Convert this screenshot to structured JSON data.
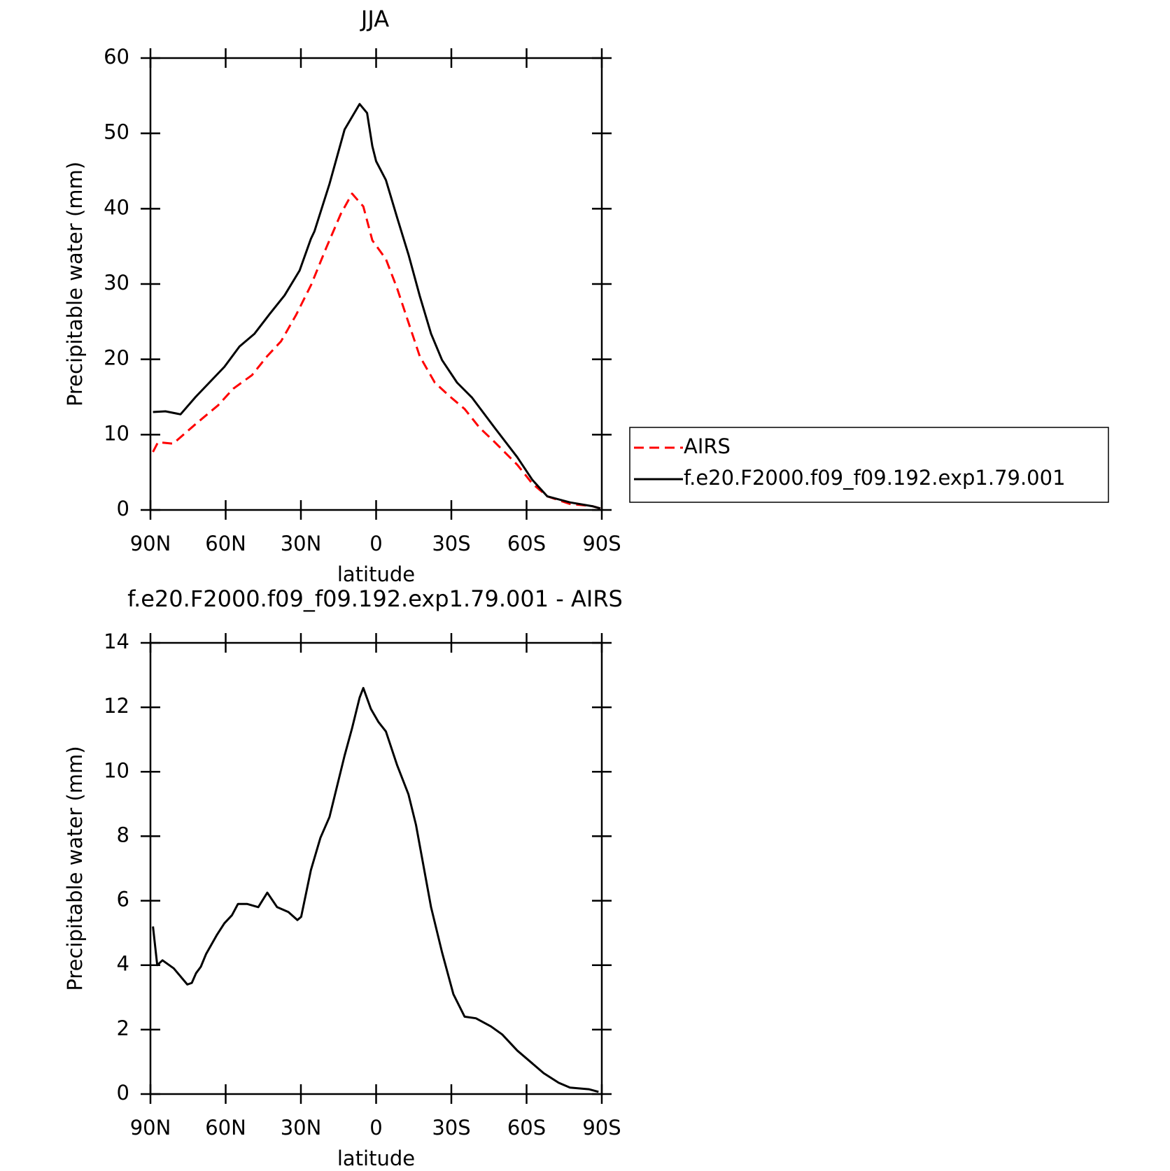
{
  "chart_data": [
    {
      "type": "line",
      "title": "JJA",
      "xlabel": "latitude",
      "ylabel": "Precipitable water (mm)",
      "xlim": [
        90,
        -90
      ],
      "ylim": [
        0,
        60
      ],
      "xticks": [
        {
          "value": 90,
          "label": "90N"
        },
        {
          "value": 60,
          "label": "60N"
        },
        {
          "value": 30,
          "label": "30N"
        },
        0,
        {
          "value": -30,
          "label": "30S"
        },
        {
          "value": -60,
          "label": "60S"
        },
        {
          "value": -90,
          "label": "90S"
        }
      ],
      "yticks": [
        0,
        10,
        20,
        30,
        40,
        50,
        60
      ],
      "legend": "right",
      "series": [
        {
          "name": "AIRS",
          "color": "#ff0000",
          "style": "dashed",
          "x": [
            89,
            87,
            81,
            72,
            63,
            57,
            49.5,
            43.5,
            37.9,
            31.9,
            25.9,
            19.9,
            14.1,
            9.6,
            5.1,
            1.5,
            -3.9,
            -8.4,
            -12.9,
            -17.4,
            -23.4,
            -29.3,
            -35.3,
            -41.3,
            -47.3,
            -56.3,
            -62.3,
            -68.3,
            -77.3,
            -86.2,
            -89.4
          ],
          "values": [
            7.7,
            9,
            8.8,
            11.4,
            13.9,
            16.1,
            17.9,
            20.4,
            22.4,
            25.9,
            29.9,
            34.8,
            39.3,
            42,
            40.3,
            35.8,
            33.3,
            29.4,
            24.9,
            20.4,
            16.9,
            15.1,
            13.4,
            10.9,
            9,
            6,
            3.5,
            1.8,
            0.8,
            0.5,
            0.2
          ]
        },
        {
          "name": "f.e20.F2000.f09_f09.192.exp1.79.001",
          "color": "#000000",
          "style": "solid",
          "x": [
            89,
            84,
            78,
            72,
            60.5,
            54.5,
            48.5,
            42.5,
            36.5,
            30.5,
            26,
            24.6,
            18.6,
            12.6,
            6.6,
            3.6,
            1.5,
            0,
            -3.9,
            -8.4,
            -13,
            -17.4,
            -21.9,
            -26.3,
            -32.3,
            -38.3,
            -47.3,
            -56.3,
            -62.3,
            -68.3,
            -77.3,
            -86.2,
            -89.4
          ],
          "values": [
            13,
            13.1,
            12.7,
            15,
            19,
            21.7,
            23.4,
            26,
            28.5,
            31.8,
            36,
            37,
            43.3,
            50.5,
            53.9,
            52.7,
            48.3,
            46.3,
            43.8,
            38.8,
            33.8,
            28.4,
            23.4,
            19.9,
            16.9,
            14.9,
            10.9,
            7,
            4,
            1.8,
            1,
            0.5,
            0.2
          ]
        }
      ]
    },
    {
      "type": "line",
      "title": "f.e20.F2000.f09_f09.192.exp1.79.001 - AIRS",
      "xlabel": "latitude",
      "ylabel": "Precipitable water (mm)",
      "xlim": [
        90,
        -90
      ],
      "ylim": [
        0,
        14
      ],
      "xticks": [
        {
          "value": 90,
          "label": "90N"
        },
        {
          "value": 60,
          "label": "60N"
        },
        {
          "value": 30,
          "label": "30N"
        },
        0,
        {
          "value": -30,
          "label": "30S"
        },
        {
          "value": -60,
          "label": "60S"
        },
        {
          "value": -90,
          "label": "90S"
        }
      ],
      "yticks": [
        0,
        2,
        4,
        6,
        8,
        10,
        12,
        14
      ],
      "series": [
        {
          "color": "#000000",
          "style": "solid",
          "x": [
            89,
            87.3,
            85.2,
            80.7,
            75.3,
            73.5,
            71.8,
            69.9,
            67.8,
            63.4,
            60.5,
            57.5,
            55.1,
            51.5,
            47,
            43.4,
            39.5,
            35,
            31.4,
            29.9,
            26,
            22.2,
            18.6,
            12.6,
            9.6,
            6.6,
            5.1,
            2.1,
            -0.9,
            -3.9,
            -8.4,
            -12.9,
            -15.9,
            -21.9,
            -26.3,
            -30.8,
            -35.3,
            -39.8,
            -45.8,
            -50.3,
            -56.3,
            -62.3,
            -66.8,
            -72.8,
            -77.3,
            -84.8,
            -88.7
          ],
          "values": [
            5.2,
            4,
            4.15,
            3.9,
            3.4,
            3.45,
            3.75,
            3.95,
            4.35,
            4.95,
            5.3,
            5.55,
            5.9,
            5.9,
            5.8,
            6.25,
            5.8,
            5.65,
            5.4,
            5.5,
            6.95,
            7.95,
            8.6,
            10.5,
            11.35,
            12.3,
            12.6,
            11.95,
            11.55,
            11.25,
            10.2,
            9.3,
            8.35,
            5.8,
            4.4,
            3.1,
            2.4,
            2.35,
            2.1,
            1.85,
            1.35,
            0.95,
            0.65,
            0.35,
            0.2,
            0.15,
            0.07
          ]
        }
      ]
    }
  ]
}
